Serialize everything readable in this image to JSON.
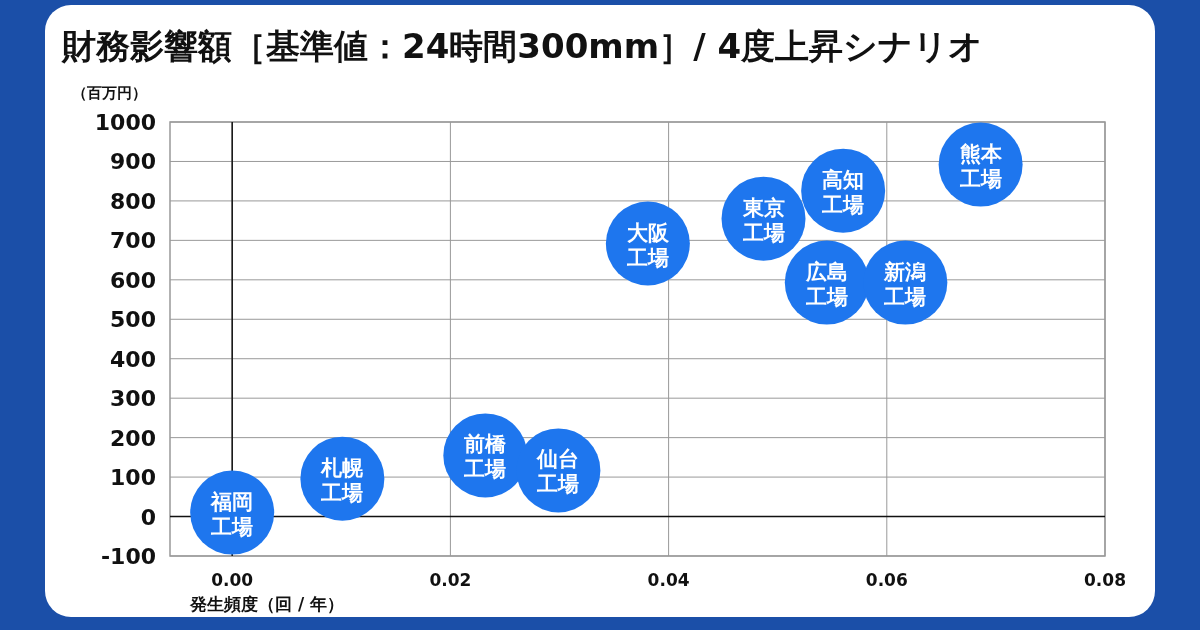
{
  "chart_data": {
    "type": "scatter",
    "title": "財務影響額［基準値：24時間300mm］/ 4度上昇シナリオ",
    "ylabel": "（百万円）",
    "xlabel": "発生頻度（回 / 年）",
    "x": [
      0.0,
      0.0101,
      0.0232,
      0.0299,
      0.0381,
      0.0487,
      0.056,
      0.0545,
      0.0617,
      0.0686
    ],
    "values": [
      10,
      96,
      155,
      117,
      692,
      755,
      826,
      593,
      593,
      892
    ],
    "color": "#1e76ee",
    "marker": "circle",
    "grid": true,
    "xlim": [
      -0.0057,
      0.08
    ],
    "xticks": [
      {
        "value": 0,
        "label": "0.00"
      },
      {
        "value": 0.02,
        "label": "0.02"
      },
      {
        "value": 0.04,
        "label": "0.04"
      },
      {
        "value": 0.06,
        "label": "0.06"
      },
      {
        "value": 0.08,
        "label": "0.08"
      }
    ],
    "ylim": [
      -100,
      1000
    ],
    "yticks": [
      -100,
      0,
      100,
      200,
      300,
      400,
      500,
      600,
      700,
      800,
      900,
      1000
    ],
    "annotations": [
      {
        "text": "福岡工場",
        "x": 0.0,
        "y": 10
      },
      {
        "text": "札幌工場",
        "x": 0.0101,
        "y": 96
      },
      {
        "text": "前橋工場",
        "x": 0.0232,
        "y": 155
      },
      {
        "text": "仙台工場",
        "x": 0.0299,
        "y": 117
      },
      {
        "text": "大阪工場",
        "x": 0.0381,
        "y": 692
      },
      {
        "text": "東京工場",
        "x": 0.0487,
        "y": 755
      },
      {
        "text": "高知工場",
        "x": 0.056,
        "y": 826
      },
      {
        "text": "広島工場",
        "x": 0.0545,
        "y": 593
      },
      {
        "text": "新潟工場",
        "x": 0.0617,
        "y": 593
      },
      {
        "text": "熊本工場",
        "x": 0.0686,
        "y": 892
      }
    ]
  }
}
